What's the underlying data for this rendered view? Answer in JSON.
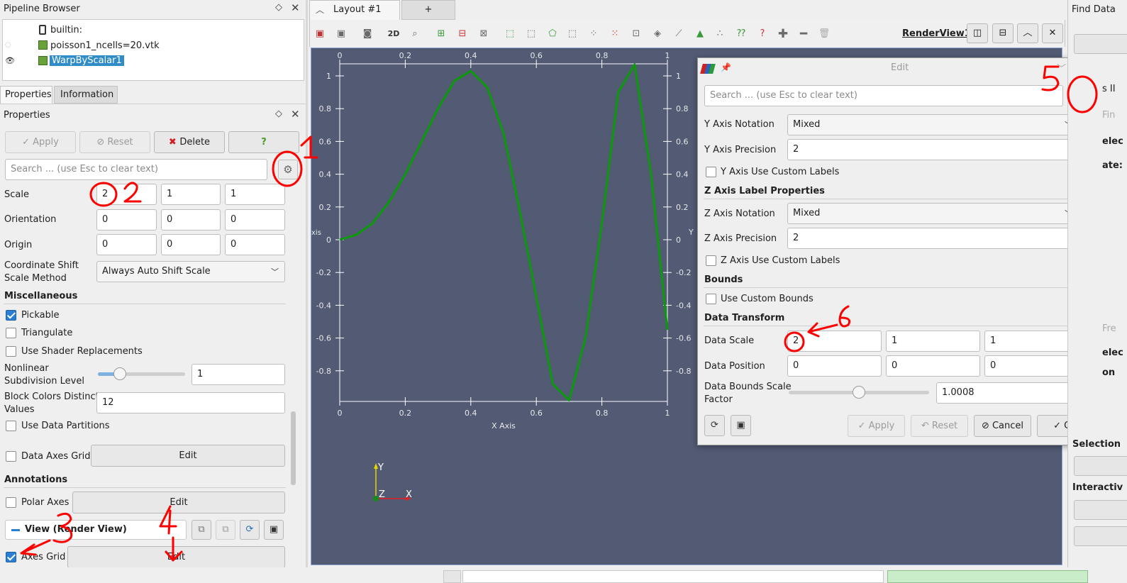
{
  "pipeline_browser": {
    "title": "Pipeline Browser",
    "items": [
      {
        "label": "builtin:"
      },
      {
        "label": "poisson1_ncells=20.vtk"
      },
      {
        "label": "WarpByScalar1"
      }
    ]
  },
  "tabs": {
    "properties": "Properties",
    "information": "Information"
  },
  "properties": {
    "title": "Properties",
    "apply": "Apply",
    "reset": "Reset",
    "delete": "Delete",
    "help": "?",
    "search_placeholder": "Search ... (use Esc to clear text)",
    "rows": {
      "scale": {
        "label": "Scale",
        "values": [
          "2",
          "1",
          "1"
        ]
      },
      "orientation": {
        "label": "Orientation",
        "values": [
          "0",
          "0",
          "0"
        ]
      },
      "origin": {
        "label": "Origin",
        "values": [
          "0",
          "0",
          "0"
        ]
      },
      "coord_shift": {
        "label1": "Coordinate Shift",
        "label2": "Scale Method",
        "value": "Always Auto Shift Scale"
      }
    },
    "misc": {
      "title": "Miscellaneous",
      "pickable": "Pickable",
      "triangulate": "Triangulate",
      "shader": "Use Shader Replacements",
      "nonlinear_label1": "Nonlinear",
      "nonlinear_label2": "Subdivision Level",
      "nonlinear_value": "1",
      "slider_fraction": 0.25,
      "block_label1": "Block Colors Distinct",
      "block_label2": "Values",
      "block_value": "12",
      "partitions": "Use Data Partitions",
      "data_axes_grid": "Data Axes Grid",
      "edit": "Edit"
    },
    "annotations": {
      "title": "Annotations",
      "polar_axes": "Polar Axes",
      "edit": "Edit",
      "view_label": "View (Render View)",
      "axes_grid": "Axes Grid",
      "axes_edit": "Edit"
    }
  },
  "layout": {
    "tab": "Layout #1",
    "add_tab": "+",
    "view_name": "RenderView1",
    "btn_2d": "2D"
  },
  "plot": {
    "x_ticks": [
      "0",
      "0.2",
      "0.4",
      "0.6",
      "0.8",
      "1"
    ],
    "y_ticks": [
      "1",
      "0.8",
      "0.6",
      "0.4",
      "0.2",
      "0",
      "-0.2",
      "-0.4",
      "-0.6",
      "-0.8"
    ],
    "x_title": "X Axis",
    "y_title_left": "xis",
    "y_title_right": "Y",
    "orientation": {
      "y": "Y",
      "z": "Z",
      "x": "X"
    },
    "line_color": "#0a9a0a",
    "background": "#525a74"
  },
  "chart_data": {
    "type": "line",
    "x": [
      0,
      0.05,
      0.1,
      0.15,
      0.2,
      0.25,
      0.3,
      0.35,
      0.4,
      0.45,
      0.5,
      0.55,
      0.6,
      0.65,
      0.7,
      0.75,
      0.8,
      0.85,
      0.9,
      0.95,
      1
    ],
    "series": [
      {
        "values": [
          0,
          0.03,
          0.1,
          0.23,
          0.4,
          0.6,
          0.8,
          0.97,
          1.03,
          0.93,
          0.65,
          0.17,
          -0.35,
          -0.88,
          -0.98,
          -0.6,
          0.1,
          0.9,
          1.07,
          0.4,
          -0.55
        ]
      }
    ],
    "xlabel": "X Axis",
    "xlim": [
      0,
      1
    ],
    "ylim": [
      -1,
      1.1
    ],
    "grid": false
  },
  "edit_dialog": {
    "title": "Edit",
    "search_placeholder": "Search ... (use Esc to clear text)",
    "y_notation_label": "Y Axis Notation",
    "y_notation_value": "Mixed",
    "y_precision_label": "Y Axis Precision",
    "y_precision_value": "2",
    "y_custom": "Y Axis Use Custom Labels",
    "z_section": "Z Axis Label Properties",
    "z_notation_label": "Z Axis Notation",
    "z_notation_value": "Mixed",
    "z_precision_label": "Z Axis Precision",
    "z_precision_value": "2",
    "z_custom": "Z Axis Use Custom Labels",
    "bounds_section": "Bounds",
    "custom_bounds": "Use Custom Bounds",
    "transform_section": "Data Transform",
    "data_scale_label": "Data Scale",
    "data_scale": [
      "2",
      "1",
      "1"
    ],
    "data_position_label": "Data Position",
    "data_position": [
      "0",
      "0",
      "0"
    ],
    "bounds_factor_label1": "Data Bounds Scale",
    "bounds_factor_label2": "Factor",
    "bounds_factor_value": "1.0008",
    "bounds_slider_fraction": 0.5,
    "apply": "Apply",
    "reset": "Reset",
    "cancel": "Cancel",
    "ok": "OK"
  },
  "find_data": {
    "title": "Find Data",
    "fragments": [
      "s II",
      "Fin",
      "elec",
      "ate:",
      "Fre",
      "elec",
      "on",
      "Selection",
      "Interactiv"
    ]
  },
  "annotations_marks": [
    "1",
    "2",
    "3",
    "4",
    "5",
    "6"
  ]
}
